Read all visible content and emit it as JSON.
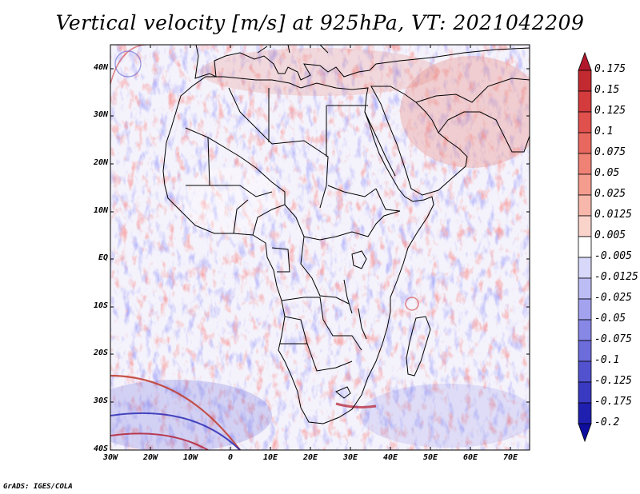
{
  "title": "Vertical velocity [m/s] at 925hPa, VT: 2021042209",
  "credit": "GrADS: IGES/COLA",
  "map": {
    "lon_range": [
      -30,
      75
    ],
    "lat_range": [
      -40,
      45
    ],
    "lat_labels": [
      "40N",
      "30N",
      "20N",
      "10N",
      "EQ",
      "10S",
      "20S",
      "30S",
      "40S"
    ],
    "lon_labels": [
      "30W",
      "20W",
      "10W",
      "0",
      "10E",
      "20E",
      "30E",
      "40E",
      "50E",
      "60E",
      "70E"
    ]
  },
  "colorbar": {
    "labels": [
      "0.175",
      "0.15",
      "0.125",
      "0.1",
      "0.075",
      "0.05",
      "0.025",
      "0.0125",
      "0.005",
      "-0.005",
      "-0.0125",
      "-0.025",
      "-0.05",
      "-0.075",
      "-0.1",
      "-0.125",
      "-0.175",
      "-0.2"
    ],
    "colors": [
      "#b2182b",
      "#c22a30",
      "#d33b3d",
      "#e0504c",
      "#e8685f",
      "#ef8275",
      "#f49c8e",
      "#f7b7aa",
      "#fad3cb",
      "#ffffff",
      "#d8d8fb",
      "#bdbdf6",
      "#a2a2ef",
      "#8787e6",
      "#6c6cdb",
      "#5252cf",
      "#3939c2",
      "#2020b0",
      "#0d0d9e"
    ]
  }
}
